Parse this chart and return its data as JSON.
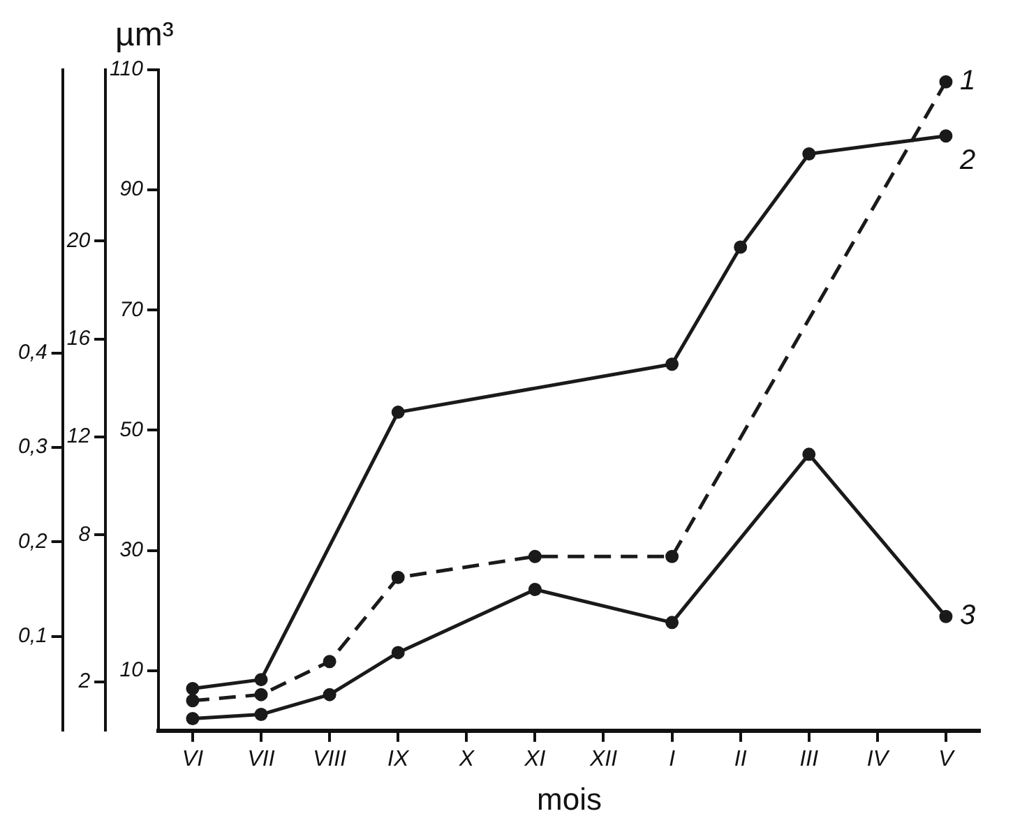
{
  "chart_data": {
    "type": "line",
    "xlabel": "mois",
    "ylabel": "µm³",
    "categories": [
      "VI",
      "VII",
      "VIII",
      "IX",
      "X",
      "XI",
      "XII",
      "I",
      "II",
      "III",
      "IV",
      "V"
    ],
    "series": [
      {
        "name": "1",
        "color": "#1a1a1a",
        "line_style": "dashed",
        "values": [
          5,
          6,
          11.5,
          25.5,
          null,
          29,
          null,
          29,
          null,
          null,
          null,
          108
        ]
      },
      {
        "name": "2",
        "color": "#1a1a1a",
        "line_style": "solid",
        "values": [
          7,
          8.5,
          null,
          53,
          null,
          null,
          null,
          61,
          80.5,
          96,
          null,
          99
        ]
      },
      {
        "name": "3",
        "color": "#1a1a1a",
        "line_style": "solid",
        "values": [
          2,
          2.7,
          6,
          13,
          null,
          23.5,
          null,
          18,
          null,
          46,
          null,
          19
        ]
      }
    ],
    "ylim": [
      0,
      110
    ],
    "yticks": [
      10,
      30,
      50,
      70,
      90,
      110
    ],
    "y2lim": [
      0,
      27
    ],
    "y2ticks": [
      2,
      8,
      12,
      16,
      20
    ],
    "y3lim": [
      0,
      0.7
    ],
    "y3ticks": [
      {
        "value": 0.1,
        "label": "0,1"
      },
      {
        "value": 0.2,
        "label": "0,2"
      },
      {
        "value": 0.3,
        "label": "0,3"
      },
      {
        "value": 0.4,
        "label": "0,4"
      }
    ],
    "marker": "circle",
    "grid": false,
    "legend": false
  }
}
